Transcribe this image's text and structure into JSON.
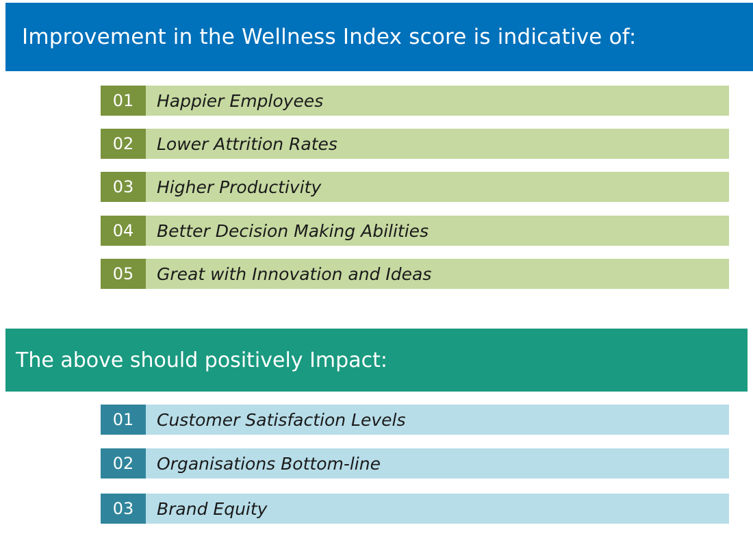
{
  "section1": {
    "heading": "Improvement in the Wellness Index score is indicative of:",
    "items": [
      {
        "num": "01",
        "label": "Happier Employees"
      },
      {
        "num": "02",
        "label": "Lower Attrition Rates"
      },
      {
        "num": "03",
        "label": "Higher Productivity"
      },
      {
        "num": "04",
        "label": "Better Decision Making Abilities"
      },
      {
        "num": "05",
        "label": "Great with Innovation and Ideas"
      }
    ]
  },
  "section2": {
    "heading": "The above should positively Impact:",
    "items": [
      {
        "num": "01",
        "label": "Customer Satisfaction Levels"
      },
      {
        "num": "02",
        "label": "Organisations Bottom-line"
      },
      {
        "num": "03",
        "label": "Brand Equity"
      }
    ]
  },
  "colors": {
    "banner1": "#0071bb",
    "banner2": "#1a9a80",
    "green_number": "#7a933d",
    "green_label": "#c6d9a1",
    "blue_number": "#30859c",
    "blue_label": "#b7dde8"
  }
}
